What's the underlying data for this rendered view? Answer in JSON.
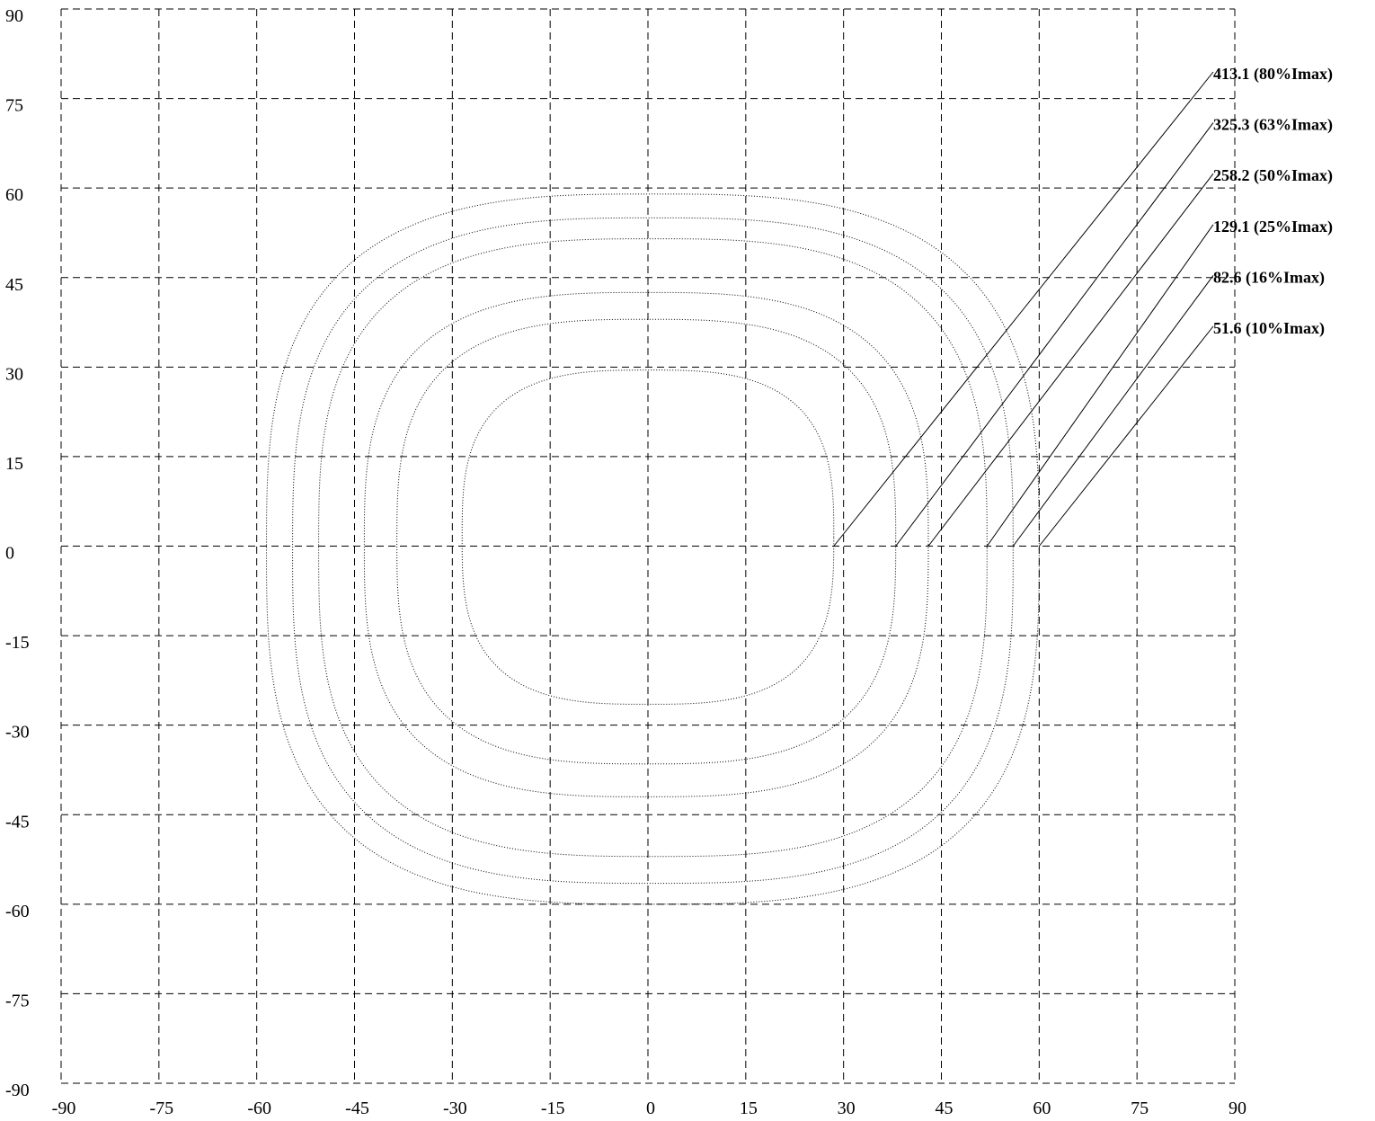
{
  "chart_data": {
    "type": "line",
    "title": "",
    "xlabel": "",
    "ylabel": "",
    "xlim": [
      -90,
      90
    ],
    "ylim": [
      -90,
      90
    ],
    "x_ticks": [
      -90,
      -75,
      -60,
      -45,
      -30,
      -15,
      0,
      15,
      30,
      45,
      60,
      75,
      90
    ],
    "y_ticks": [
      90,
      75,
      60,
      45,
      30,
      15,
      0,
      -15,
      -30,
      -45,
      -60,
      -75,
      -90
    ],
    "grid": true,
    "grid_style": "dashed",
    "contour_style": "dotted",
    "series": [
      {
        "label": "413.1 (80%Imax)",
        "value": 413.1,
        "percent_imax": 80,
        "x_left": -28.5,
        "x_right": 28.5,
        "y_top": 29.5,
        "y_bottom": -26.5
      },
      {
        "label": "325.3 (63%Imax)",
        "value": 325.3,
        "percent_imax": 63,
        "x_left": -38.5,
        "x_right": 38.0,
        "y_top": 38.0,
        "y_bottom": -36.5
      },
      {
        "label": "258.2 (50%Imax)",
        "value": 258.2,
        "percent_imax": 50,
        "x_left": -43.5,
        "x_right": 43.0,
        "y_top": 42.5,
        "y_bottom": -42.0
      },
      {
        "label": "129.1 (25%Imax)",
        "value": 129.1,
        "percent_imax": 25,
        "x_left": -50.5,
        "x_right": 52.0,
        "y_top": 51.5,
        "y_bottom": -52.0
      },
      {
        "label": "82.6 (16%Imax)",
        "value": 82.6,
        "percent_imax": 16,
        "x_left": -54.5,
        "x_right": 56.0,
        "y_top": 55.0,
        "y_bottom": -56.5
      },
      {
        "label": "51.6 (10%Imax)",
        "value": 51.6,
        "percent_imax": 10,
        "x_left": -58.5,
        "x_right": 60.0,
        "y_top": 59.0,
        "y_bottom": -60.0
      }
    ]
  }
}
